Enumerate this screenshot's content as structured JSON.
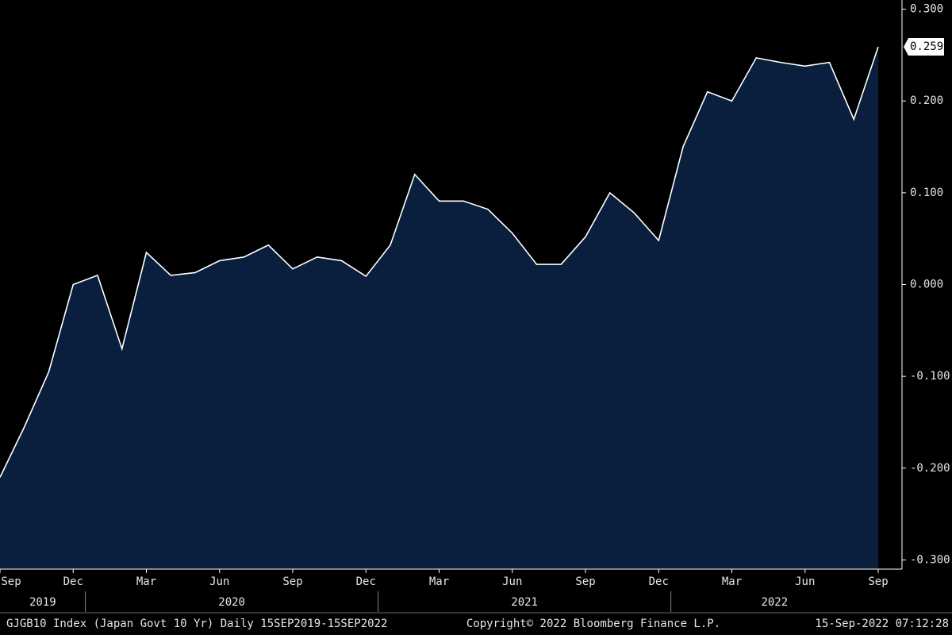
{
  "chart_data": {
    "type": "area",
    "x": [
      "2019-09",
      "2019-10",
      "2019-11",
      "2019-12",
      "2020-01",
      "2020-02",
      "2020-03",
      "2020-04",
      "2020-05",
      "2020-06",
      "2020-07",
      "2020-08",
      "2020-09",
      "2020-10",
      "2020-11",
      "2020-12",
      "2021-01",
      "2021-02",
      "2021-03",
      "2021-04",
      "2021-05",
      "2021-06",
      "2021-07",
      "2021-08",
      "2021-09",
      "2021-10",
      "2021-11",
      "2021-12",
      "2022-01",
      "2022-02",
      "2022-03",
      "2022-04",
      "2022-05",
      "2022-06",
      "2022-07",
      "2022-08",
      "2022-09"
    ],
    "series": [
      {
        "color": "#ffffff",
        "fill": "#0a1f3d",
        "values": [
          -0.21,
          -0.155,
          -0.095,
          0.0,
          0.01,
          -0.07,
          0.035,
          0.01,
          0.013,
          0.026,
          0.03,
          0.043,
          0.017,
          0.03,
          0.026,
          0.009,
          0.043,
          0.12,
          0.091,
          0.091,
          0.082,
          0.056,
          0.022,
          0.022,
          0.052,
          0.1,
          0.078,
          0.048,
          0.15,
          0.21,
          0.2,
          0.247,
          0.242,
          0.238,
          0.242,
          0.18,
          0.259
        ]
      }
    ],
    "ylim": [
      -0.31,
      0.31
    ],
    "yticks": [
      {
        "value": 0.3,
        "label": "0.300"
      },
      {
        "value": 0.2,
        "label": "0.200"
      },
      {
        "value": 0.1,
        "label": "0.100"
      },
      {
        "value": 0,
        "label": "0.000"
      },
      {
        "value": -0.1,
        "label": "-0.100"
      },
      {
        "value": -0.2,
        "label": "-0.200"
      },
      {
        "value": -0.3,
        "label": "-0.300"
      }
    ],
    "xticks": [
      {
        "value": "2019-09",
        "label": "Sep"
      },
      {
        "value": "2019-12",
        "label": "Dec"
      },
      {
        "value": "2020-03",
        "label": "Mar"
      },
      {
        "value": "2020-06",
        "label": "Jun"
      },
      {
        "value": "2020-09",
        "label": "Sep"
      },
      {
        "value": "2020-12",
        "label": "Dec"
      },
      {
        "value": "2021-03",
        "label": "Mar"
      },
      {
        "value": "2021-06",
        "label": "Jun"
      },
      {
        "value": "2021-09",
        "label": "Sep"
      },
      {
        "value": "2021-12",
        "label": "Dec"
      },
      {
        "value": "2022-03",
        "label": "Mar"
      },
      {
        "value": "2022-06",
        "label": "Jun"
      },
      {
        "value": "2022-09",
        "label": "Sep"
      }
    ],
    "year_labels": [
      "2019",
      "2020",
      "2021",
      "2022"
    ],
    "footer": {
      "left": "GJGB10 Index (Japan Govt 10 Yr)  Daily 15SEP2019-15SEP2022",
      "center": "Copyright© 2022 Bloomberg Finance L.P.",
      "right": "15-Sep-2022 07:12:28"
    }
  }
}
